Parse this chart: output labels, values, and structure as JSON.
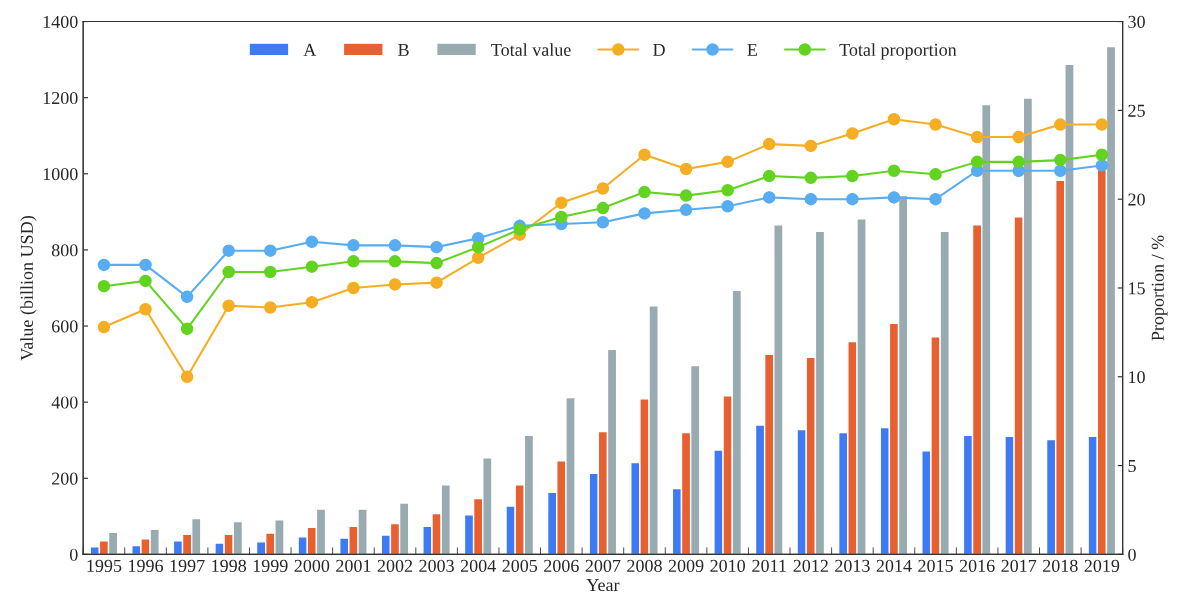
{
  "chart_data": {
    "type": "bar",
    "xlabel": "Year",
    "ylabel": "Value (billion USD)",
    "y2label": "Proportion / %",
    "categories": [
      "1995",
      "1996",
      "1997",
      "1998",
      "1999",
      "2000",
      "2001",
      "2002",
      "2003",
      "2004",
      "2005",
      "2006",
      "2007",
      "2008",
      "2009",
      "2010",
      "2011",
      "2012",
      "2013",
      "2014",
      "2015",
      "2016",
      "2017",
      "2018",
      "2019"
    ],
    "series": [
      {
        "name": "A",
        "color": "#3f7af5",
        "values": [
          20,
          23,
          36,
          30,
          33,
          46,
          43,
          51,
          74,
          104,
          127,
          163,
          213,
          241,
          173,
          274,
          340,
          328,
          320,
          333,
          272,
          313,
          310,
          302,
          310
        ]
      },
      {
        "name": "B",
        "color": "#e85f30",
        "values": [
          36,
          41,
          53,
          53,
          56,
          71,
          74,
          81,
          107,
          147,
          183,
          246,
          323,
          409,
          320,
          417,
          526,
          518,
          559,
          607,
          572,
          866,
          887,
          983,
          1011
        ]
      },
      {
        "name": "Total value",
        "color": "#98abb0",
        "values": [
          58,
          66,
          94,
          86,
          91,
          119,
          119,
          135,
          183,
          254,
          313,
          412,
          539,
          653,
          496,
          694,
          866,
          849,
          882,
          943,
          849,
          1182,
          1199,
          1288,
          1334
        ]
      },
      {
        "name": "D",
        "type": "line",
        "axis": "y2",
        "color": "#f5ae23",
        "values": [
          12.8,
          13.8,
          10.0,
          14.0,
          13.9,
          14.2,
          15.0,
          15.2,
          15.3,
          16.7,
          18.0,
          19.8,
          20.6,
          22.5,
          21.7,
          22.1,
          23.1,
          23.0,
          23.7,
          24.5,
          24.2,
          23.5,
          23.5,
          24.2,
          24.2
        ]
      },
      {
        "name": "E",
        "type": "line",
        "axis": "y2",
        "color": "#58adf2",
        "values": [
          16.3,
          16.3,
          14.5,
          17.1,
          17.1,
          17.6,
          17.4,
          17.4,
          17.3,
          17.8,
          18.5,
          18.6,
          18.7,
          19.2,
          19.4,
          19.6,
          20.1,
          20.0,
          20.0,
          20.1,
          20.0,
          21.6,
          21.6,
          21.6,
          21.9
        ]
      },
      {
        "name": "Total proportion",
        "type": "line",
        "axis": "y2",
        "color": "#63d321",
        "values": [
          15.1,
          15.4,
          12.7,
          15.9,
          15.9,
          16.2,
          16.5,
          16.5,
          16.4,
          17.3,
          18.3,
          19.0,
          19.5,
          20.4,
          20.2,
          20.5,
          21.3,
          21.2,
          21.3,
          21.6,
          21.4,
          22.1,
          22.1,
          22.2,
          22.5
        ]
      }
    ],
    "ylim": [
      0,
      1400
    ],
    "yticks": [
      0,
      200,
      400,
      600,
      800,
      1000,
      1200,
      1400
    ],
    "y2lim": [
      0,
      30
    ],
    "y2ticks": [
      0,
      5,
      10,
      15,
      20,
      25,
      30
    ],
    "legend": "top",
    "marker": "circle",
    "grid": false
  }
}
